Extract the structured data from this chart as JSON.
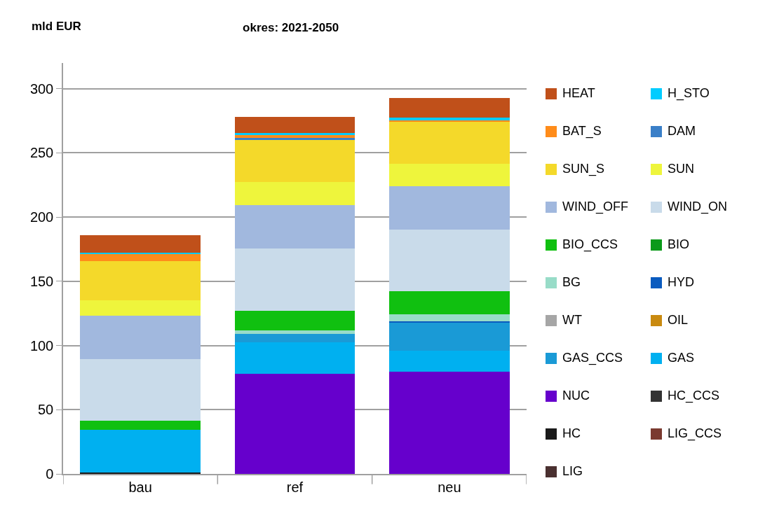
{
  "chart_data": {
    "type": "bar",
    "stacked": true,
    "title": "okres: 2021-2050",
    "ylabel": "mld EUR",
    "categories": [
      "bau",
      "ref",
      "neu"
    ],
    "ylim": [
      0,
      320
    ],
    "yticks": [
      0,
      50,
      100,
      150,
      200,
      250,
      300
    ],
    "grid": "y",
    "legend": "right",
    "series": [
      {
        "name": "LIG",
        "color": "#4a3030",
        "values": [
          0,
          0,
          0
        ]
      },
      {
        "name": "LIG_CCS",
        "color": "#7a3a30",
        "values": [
          0,
          0,
          0
        ]
      },
      {
        "name": "HC",
        "color": "#1a1a1a",
        "values": [
          1,
          0,
          0
        ]
      },
      {
        "name": "HC_CCS",
        "color": "#333333",
        "values": [
          0,
          0,
          0
        ]
      },
      {
        "name": "NUC",
        "color": "#6600cc",
        "values": [
          0,
          78.1,
          79.5
        ]
      },
      {
        "name": "GAS",
        "color": "#00b0f0",
        "values": [
          33.5,
          24.4,
          16.5
        ]
      },
      {
        "name": "GAS_CCS",
        "color": "#1a9ad6",
        "values": [
          0,
          6.7,
          22.1
        ]
      },
      {
        "name": "OIL",
        "color": "#c98a10",
        "values": [
          0,
          0,
          0
        ]
      },
      {
        "name": "WT",
        "color": "#a6a6a6",
        "values": [
          0,
          0,
          0
        ]
      },
      {
        "name": "HYD",
        "color": "#0a5bbf",
        "values": [
          null,
          null,
          0.5
        ]
      },
      {
        "name": "BG",
        "color": "#98dcc8",
        "values": [
          0,
          2.3,
          5.5
        ]
      },
      {
        "name": "BIO",
        "color": "#0a9a1a",
        "values": [
          0,
          0,
          0
        ]
      },
      {
        "name": "BIO_CCS",
        "color": "#10c010",
        "values": [
          7.2,
          15.7,
          18.3
        ]
      },
      {
        "name": "WIND_ON",
        "color": "#c9dbea",
        "values": [
          47.9,
          48.2,
          47.8
        ]
      },
      {
        "name": "WIND_OFF",
        "color": "#a1b8de",
        "values": [
          33.7,
          33.7,
          33.7
        ]
      },
      {
        "name": "SUN",
        "color": "#eef53c",
        "values": [
          11.9,
          18.3,
          17.8
        ]
      },
      {
        "name": "SUN_S",
        "color": "#f4d92a",
        "values": [
          30.3,
          33.1,
          32.4
        ]
      },
      {
        "name": "DAM",
        "color": "#3a7fc8",
        "values": [
          0,
          0.9,
          0
        ]
      },
      {
        "name": "BAT_S",
        "color": "#ff8c1a",
        "values": [
          5.8,
          2.2,
          1.4
        ]
      },
      {
        "name": "H_STO",
        "color": "#00ccff",
        "values": [
          1.1,
          2,
          2.2
        ]
      },
      {
        "name": "HEAT",
        "color": "#c0501a",
        "values": [
          13.4,
          12.5,
          15.2
        ]
      }
    ]
  }
}
